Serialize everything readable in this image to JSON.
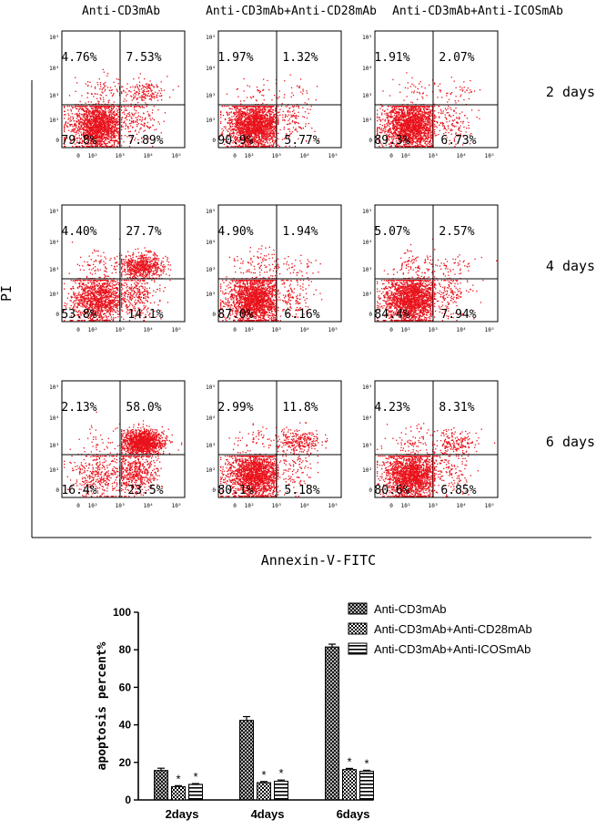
{
  "colors": {
    "dots": "#e8121b",
    "axis": "#000000",
    "gate": "#000000",
    "bar_fill": "#ffffff"
  },
  "flow": {
    "column_titles": [
      "Anti-CD3mAb",
      "Anti-CD3mAb+Anti-CD28mAb",
      "Anti-CD3mAb+Anti-ICOSmAb"
    ],
    "row_labels": [
      "2 days",
      "4 days",
      "6 days"
    ],
    "y_axis_label": "PI",
    "x_axis_label": "Annexin-V-FITC",
    "tick_labels": [
      "0",
      "10²",
      "10³",
      "10⁴",
      "10⁵"
    ],
    "panels": [
      [
        {
          "ul": "4.76%",
          "ur": "7.53%",
          "ll": "79.8%",
          "lr": "7.89%"
        },
        {
          "ul": "1.97%",
          "ur": "1.32%",
          "ll": "90.9%",
          "lr": "5.77%"
        },
        {
          "ul": "1.91%",
          "ur": "2.07%",
          "ll": "89.3%",
          "lr": "6.73%"
        }
      ],
      [
        {
          "ul": "4.40%",
          "ur": "27.7%",
          "ll": "53.8%",
          "lr": "14.1%"
        },
        {
          "ul": "4.90%",
          "ur": "1.94%",
          "ll": "87.0%",
          "lr": "6.16%"
        },
        {
          "ul": "5.07%",
          "ur": "2.57%",
          "ll": "84.4%",
          "lr": "7.94%"
        }
      ],
      [
        {
          "ul": "2.13%",
          "ur": "58.0%",
          "ll": "16.4%",
          "lr": "23.5%"
        },
        {
          "ul": "2.99%",
          "ur": "11.8%",
          "ll": "80.1%",
          "lr": "5.18%"
        },
        {
          "ul": "4.23%",
          "ur": "8.31%",
          "ll": "80.6%",
          "lr": "6.85%"
        }
      ]
    ]
  },
  "chart_data": {
    "type": "bar",
    "categories": [
      "2days",
      "4days",
      "6days"
    ],
    "ylabel": "apoptosis percent%",
    "xlabel": "",
    "ylim": [
      0,
      100
    ],
    "yticks": [
      0,
      20,
      40,
      60,
      80,
      100
    ],
    "series": [
      {
        "name": "Anti-CD3mAb",
        "values": [
          15.7,
          42.4,
          81.5
        ],
        "errors": [
          1.2,
          2.0,
          1.5
        ],
        "pattern": "crosshatch",
        "significant": [
          false,
          false,
          false
        ]
      },
      {
        "name": "Anti-CD3mAb+Anti-CD28mAb",
        "values": [
          7.1,
          9.2,
          16.2
        ],
        "errors": [
          0.5,
          0.6,
          0.6
        ],
        "pattern": "checker",
        "significant": [
          true,
          true,
          true
        ]
      },
      {
        "name": "Anti-CD3mAb+Anti-ICOSmAb",
        "values": [
          8.3,
          10.0,
          15.3
        ],
        "errors": [
          0.4,
          0.6,
          0.5
        ],
        "pattern": "hstripe",
        "significant": [
          true,
          true,
          true
        ]
      }
    ],
    "significance_marker": "*",
    "legend_position": "top-right"
  }
}
